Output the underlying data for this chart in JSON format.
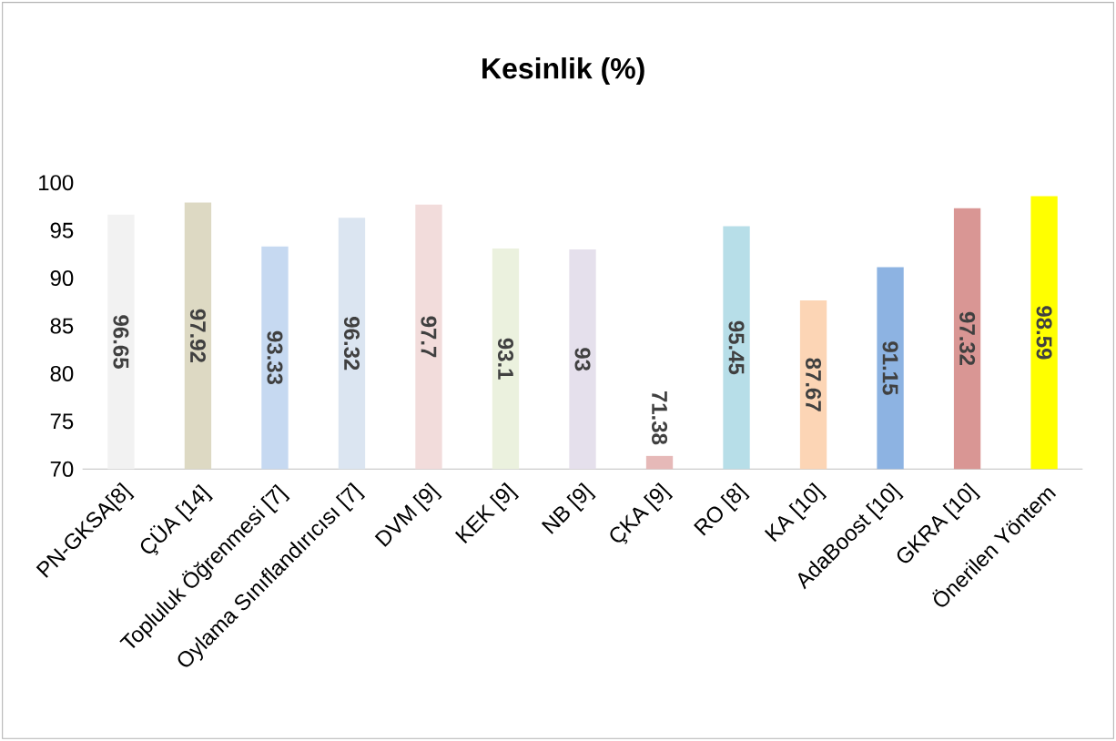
{
  "chart_data": {
    "type": "bar",
    "title": "Kesinlik (%)",
    "categories": [
      "PN-GKSA[8]",
      "ÇÜA [14]",
      "Topluluk Öğrenmesi [7]",
      "Oylama Sınıflandırıcısı [7]",
      "DVM [9]",
      "KEK [9]",
      "NB [9]",
      "ÇKA [9]",
      "RO [8]",
      "KA [10]",
      "AdaBoost [10]",
      "GKRA [10]",
      "Önerilen Yöntem"
    ],
    "values": [
      96.65,
      97.92,
      93.33,
      96.32,
      97.7,
      93.1,
      93,
      71.38,
      95.45,
      87.67,
      91.15,
      97.32,
      98.59
    ],
    "value_labels": [
      "96.65",
      "97.92",
      "93.33",
      "96.32",
      "97.7",
      "93.1",
      "93",
      "71.38",
      "95.45",
      "87.67",
      "91.15",
      "97.32",
      "98.59"
    ],
    "colors": [
      "#f2f2f2",
      "#ddd9c3",
      "#c6d9f1",
      "#dbe5f1",
      "#f2dcdb",
      "#ebf1de",
      "#e5e0ec",
      "#e6b9b8",
      "#b7dee8",
      "#fcd5b5",
      "#8db3e2",
      "#d99694",
      "#ffff00"
    ],
    "ylim": [
      70,
      100
    ],
    "yticks": [
      70,
      75,
      80,
      85,
      90,
      95,
      100
    ]
  }
}
